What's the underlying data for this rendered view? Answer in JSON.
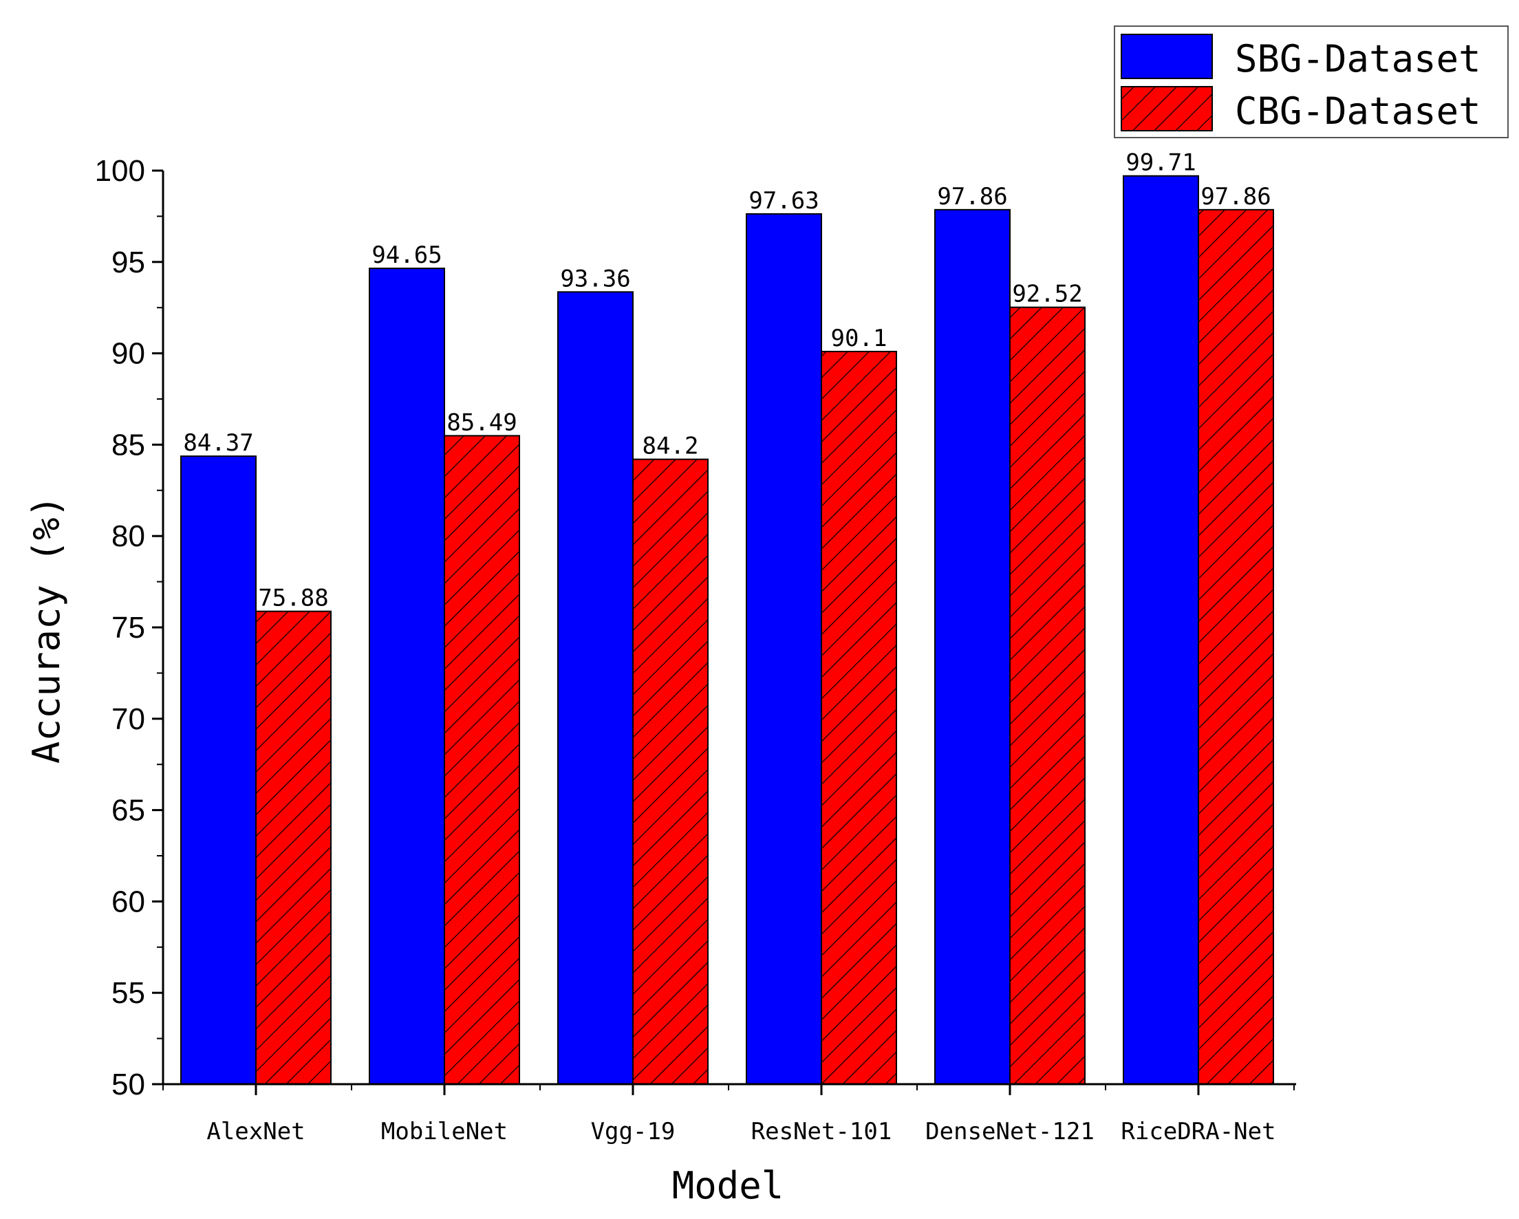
{
  "chart_data": {
    "type": "bar",
    "xlabel": "Model",
    "ylabel": "Accuracy (%)",
    "ylim": [
      50,
      100
    ],
    "yticks": [
      50,
      55,
      60,
      65,
      70,
      75,
      80,
      85,
      90,
      95,
      100
    ],
    "categories": [
      "AlexNet",
      "MobileNet",
      "Vgg-19",
      "ResNet-101",
      "DenseNet-121",
      "RiceDRA-Net"
    ],
    "series": [
      {
        "name": "SBG-Dataset",
        "color": "#0000ff",
        "pattern": "solid",
        "values": [
          84.37,
          94.65,
          93.36,
          97.63,
          97.86,
          99.71
        ],
        "labels": [
          "84.37",
          "94.65",
          "93.36",
          "97.63",
          "97.86",
          "99.71"
        ]
      },
      {
        "name": "CBG-Dataset",
        "color": "#ff0000",
        "pattern": "hatched",
        "values": [
          75.88,
          85.49,
          84.2,
          90.1,
          92.52,
          97.86
        ],
        "labels": [
          "75.88",
          "85.49",
          "84.2",
          "90.1",
          "92.52",
          "97.86"
        ]
      }
    ],
    "legend": "top-right"
  }
}
